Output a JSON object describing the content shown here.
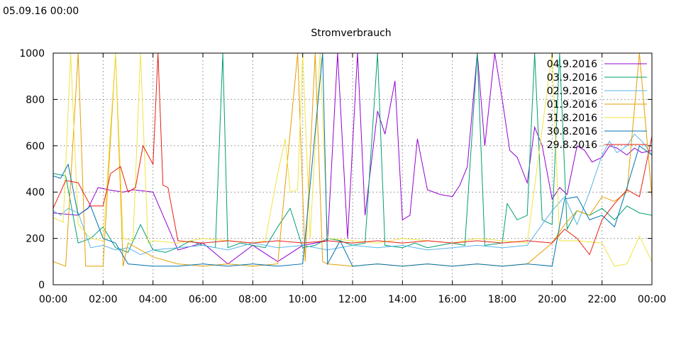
{
  "header": {
    "timestamp": "05.09.16 00:00"
  },
  "chart_data": {
    "type": "line",
    "title": "Stromverbrauch",
    "xlabel": "",
    "ylabel": "",
    "x_ticks": [
      "00:00",
      "02:00",
      "04:00",
      "06:00",
      "08:00",
      "10:00",
      "12:00",
      "14:00",
      "16:00",
      "18:00",
      "20:00",
      "22:00",
      "00:00"
    ],
    "y_ticks": [
      0,
      200,
      400,
      600,
      800,
      1000
    ],
    "xlim_hours": [
      0,
      24
    ],
    "ylim": [
      0,
      1000
    ],
    "grid": true,
    "legend_position": "top-right",
    "series": [
      {
        "name": "04.9.2016",
        "color": "#9400d3",
        "points": [
          [
            0,
            310
          ],
          [
            1,
            300
          ],
          [
            1.4,
            330
          ],
          [
            1.8,
            420
          ],
          [
            2.2,
            410
          ],
          [
            2.8,
            400
          ],
          [
            3.2,
            410
          ],
          [
            4,
            400
          ],
          [
            5,
            150
          ],
          [
            6,
            180
          ],
          [
            7,
            90
          ],
          [
            8,
            170
          ],
          [
            9,
            100
          ],
          [
            10,
            170
          ],
          [
            11,
            190
          ],
          [
            11.4,
            1000
          ],
          [
            11.8,
            200
          ],
          [
            12.2,
            1000
          ],
          [
            12.5,
            300
          ],
          [
            13,
            750
          ],
          [
            13.3,
            650
          ],
          [
            13.7,
            880
          ],
          [
            14,
            280
          ],
          [
            14.3,
            300
          ],
          [
            14.6,
            630
          ],
          [
            15,
            410
          ],
          [
            15.5,
            390
          ],
          [
            16,
            380
          ],
          [
            16.3,
            430
          ],
          [
            16.6,
            510
          ],
          [
            17,
            1000
          ],
          [
            17.3,
            600
          ],
          [
            17.7,
            1000
          ],
          [
            18,
            800
          ],
          [
            18.3,
            580
          ],
          [
            18.6,
            550
          ],
          [
            19,
            440
          ],
          [
            19.3,
            680
          ],
          [
            19.6,
            600
          ],
          [
            20,
            370
          ],
          [
            20.3,
            420
          ],
          [
            20.6,
            390
          ],
          [
            21,
            600
          ],
          [
            21.3,
            580
          ],
          [
            21.6,
            530
          ],
          [
            22,
            550
          ],
          [
            22.3,
            600
          ],
          [
            22.6,
            590
          ],
          [
            23,
            560
          ],
          [
            23.3,
            590
          ],
          [
            23.6,
            570
          ],
          [
            24,
            580
          ]
        ]
      },
      {
        "name": "03.9.2016",
        "color": "#009e73",
        "points": [
          [
            0,
            480
          ],
          [
            0.5,
            470
          ],
          [
            1,
            180
          ],
          [
            1.5,
            200
          ],
          [
            2,
            250
          ],
          [
            2.5,
            160
          ],
          [
            3,
            140
          ],
          [
            3.5,
            260
          ],
          [
            4,
            150
          ],
          [
            4.5,
            140
          ],
          [
            5,
            160
          ],
          [
            5.5,
            190
          ],
          [
            6,
            170
          ],
          [
            6.5,
            160
          ],
          [
            6.8,
            1000
          ],
          [
            7,
            160
          ],
          [
            7.5,
            180
          ],
          [
            8,
            170
          ],
          [
            8.5,
            160
          ],
          [
            9,
            250
          ],
          [
            9.5,
            330
          ],
          [
            10,
            160
          ],
          [
            10.5,
            170
          ],
          [
            11,
            200
          ],
          [
            11.5,
            190
          ],
          [
            12,
            170
          ],
          [
            12.5,
            180
          ],
          [
            13,
            1000
          ],
          [
            13.3,
            170
          ],
          [
            14,
            160
          ],
          [
            14.5,
            180
          ],
          [
            15,
            160
          ],
          [
            15.5,
            170
          ],
          [
            16,
            180
          ],
          [
            16.5,
            170
          ],
          [
            17,
            1000
          ],
          [
            17.3,
            170
          ],
          [
            18,
            180
          ],
          [
            18.2,
            350
          ],
          [
            18.6,
            280
          ],
          [
            19,
            300
          ],
          [
            19.3,
            1000
          ],
          [
            19.6,
            280
          ],
          [
            20,
            260
          ],
          [
            20.3,
            1000
          ],
          [
            20.6,
            240
          ],
          [
            21,
            320
          ],
          [
            21.5,
            300
          ],
          [
            22,
            330
          ],
          [
            22.5,
            280
          ],
          [
            23,
            340
          ],
          [
            23.5,
            310
          ],
          [
            24,
            300
          ]
        ]
      },
      {
        "name": "02.9.2016",
        "color": "#56b4e9",
        "points": [
          [
            0,
            320
          ],
          [
            0.3,
            300
          ],
          [
            0.6,
            330
          ],
          [
            1,
            310
          ],
          [
            1.5,
            160
          ],
          [
            2,
            170
          ],
          [
            2.5,
            150
          ],
          [
            3,
            160
          ],
          [
            3.5,
            130
          ],
          [
            4,
            150
          ],
          [
            5,
            160
          ],
          [
            6,
            170
          ],
          [
            7,
            150
          ],
          [
            8,
            180
          ],
          [
            9,
            160
          ],
          [
            10,
            170
          ],
          [
            11,
            150
          ],
          [
            12,
            170
          ],
          [
            13,
            160
          ],
          [
            14,
            170
          ],
          [
            15,
            150
          ],
          [
            16,
            160
          ],
          [
            17,
            170
          ],
          [
            18,
            160
          ],
          [
            19,
            170
          ],
          [
            20,
            320
          ],
          [
            20.5,
            380
          ],
          [
            21,
            260
          ],
          [
            21.5,
            400
          ],
          [
            22,
            560
          ],
          [
            22.3,
            620
          ],
          [
            22.6,
            570
          ],
          [
            23,
            600
          ],
          [
            23.3,
            650
          ],
          [
            23.6,
            620
          ],
          [
            24,
            560
          ]
        ]
      },
      {
        "name": "01.9.2016",
        "color": "#e69f00",
        "points": [
          [
            0,
            100
          ],
          [
            0.5,
            80
          ],
          [
            1,
            1000
          ],
          [
            1.3,
            80
          ],
          [
            2,
            80
          ],
          [
            2.5,
            1000
          ],
          [
            2.8,
            80
          ],
          [
            3,
            180
          ],
          [
            3.5,
            150
          ],
          [
            4,
            120
          ],
          [
            5,
            90
          ],
          [
            6,
            80
          ],
          [
            7,
            90
          ],
          [
            8,
            80
          ],
          [
            9,
            90
          ],
          [
            9.8,
            1000
          ],
          [
            10.1,
            100
          ],
          [
            10.5,
            1000
          ],
          [
            10.8,
            100
          ],
          [
            11,
            90
          ],
          [
            12,
            80
          ],
          [
            13,
            90
          ],
          [
            14,
            80
          ],
          [
            15,
            90
          ],
          [
            16,
            80
          ],
          [
            17,
            90
          ],
          [
            18,
            80
          ],
          [
            19,
            90
          ],
          [
            20,
            180
          ],
          [
            20.5,
            260
          ],
          [
            21,
            320
          ],
          [
            21.5,
            300
          ],
          [
            22,
            380
          ],
          [
            22.5,
            360
          ],
          [
            23,
            400
          ],
          [
            23.5,
            1000
          ],
          [
            24,
            380
          ]
        ]
      },
      {
        "name": "31.8.2016",
        "color": "#f0e442",
        "points": [
          [
            0,
            290
          ],
          [
            0.4,
            270
          ],
          [
            0.7,
            1000
          ],
          [
            1,
            260
          ],
          [
            1.5,
            200
          ],
          [
            2,
            190
          ],
          [
            2.5,
            1000
          ],
          [
            2.8,
            200
          ],
          [
            3.2,
            190
          ],
          [
            3.5,
            1000
          ],
          [
            3.8,
            180
          ],
          [
            4,
            190
          ],
          [
            5,
            180
          ],
          [
            6,
            200
          ],
          [
            7,
            190
          ],
          [
            8,
            180
          ],
          [
            8.5,
            190
          ],
          [
            9,
            480
          ],
          [
            9.3,
            630
          ],
          [
            9.5,
            400
          ],
          [
            9.8,
            410
          ],
          [
            10,
            1000
          ],
          [
            10.3,
            200
          ],
          [
            10.7,
            1000
          ],
          [
            11,
            200
          ],
          [
            12,
            190
          ],
          [
            13,
            180
          ],
          [
            14,
            200
          ],
          [
            15,
            190
          ],
          [
            16,
            180
          ],
          [
            17,
            200
          ],
          [
            18,
            190
          ],
          [
            19,
            180
          ],
          [
            20,
            1000
          ],
          [
            20.3,
            190
          ],
          [
            21,
            190
          ],
          [
            22,
            180
          ],
          [
            22.5,
            80
          ],
          [
            23,
            90
          ],
          [
            23.5,
            210
          ],
          [
            24,
            100
          ]
        ]
      },
      {
        "name": "30.8.2016",
        "color": "#0072b2",
        "points": [
          [
            0,
            470
          ],
          [
            0.3,
            460
          ],
          [
            0.6,
            520
          ],
          [
            1,
            300
          ],
          [
            1.5,
            340
          ],
          [
            2,
            200
          ],
          [
            2.5,
            180
          ],
          [
            3,
            90
          ],
          [
            4,
            80
          ],
          [
            5,
            80
          ],
          [
            6,
            90
          ],
          [
            7,
            80
          ],
          [
            8,
            90
          ],
          [
            9,
            80
          ],
          [
            10,
            90
          ],
          [
            10.8,
            1000
          ],
          [
            11,
            90
          ],
          [
            11.5,
            190
          ],
          [
            12,
            80
          ],
          [
            13,
            90
          ],
          [
            14,
            80
          ],
          [
            15,
            90
          ],
          [
            16,
            80
          ],
          [
            17,
            90
          ],
          [
            18,
            80
          ],
          [
            19,
            90
          ],
          [
            20,
            80
          ],
          [
            20.5,
            370
          ],
          [
            21,
            380
          ],
          [
            21.5,
            280
          ],
          [
            22,
            300
          ],
          [
            22.5,
            250
          ],
          [
            23,
            420
          ],
          [
            23.5,
            600
          ],
          [
            24,
            560
          ]
        ]
      },
      {
        "name": "29.8.2016",
        "color": "#e51e10",
        "points": [
          [
            0,
            330
          ],
          [
            0.5,
            450
          ],
          [
            1,
            440
          ],
          [
            1.5,
            340
          ],
          [
            2,
            340
          ],
          [
            2.3,
            480
          ],
          [
            2.7,
            510
          ],
          [
            3,
            400
          ],
          [
            3.3,
            420
          ],
          [
            3.6,
            600
          ],
          [
            4,
            520
          ],
          [
            4.2,
            1000
          ],
          [
            4.4,
            430
          ],
          [
            4.6,
            420
          ],
          [
            5,
            190
          ],
          [
            6,
            180
          ],
          [
            7,
            190
          ],
          [
            8,
            180
          ],
          [
            9,
            190
          ],
          [
            10,
            180
          ],
          [
            11,
            190
          ],
          [
            12,
            180
          ],
          [
            13,
            190
          ],
          [
            14,
            180
          ],
          [
            15,
            190
          ],
          [
            16,
            180
          ],
          [
            17,
            190
          ],
          [
            18,
            180
          ],
          [
            19,
            190
          ],
          [
            20,
            180
          ],
          [
            20.5,
            240
          ],
          [
            21,
            200
          ],
          [
            21.5,
            130
          ],
          [
            22,
            280
          ],
          [
            22.5,
            350
          ],
          [
            23,
            410
          ],
          [
            23.5,
            380
          ],
          [
            24,
            640
          ]
        ]
      }
    ]
  }
}
